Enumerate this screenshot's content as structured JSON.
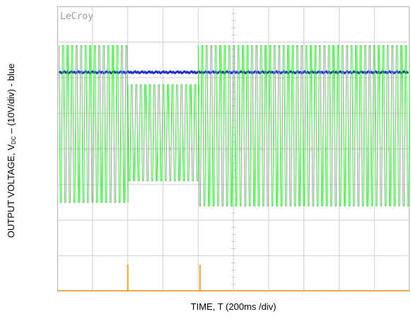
{
  "chart_data": {
    "type": "line",
    "brand": "LeCroy",
    "xlabel": "TIME, T (200ms /div)",
    "ylabel": {
      "pre": "OUTPUT VOLTAGE,  V",
      "sub": "DC",
      "post": " – (10V/div) -  blue"
    },
    "grid": {
      "divisions_x": 10,
      "divisions_y": 8,
      "visible": true
    },
    "xlim": [
      0,
      10
    ],
    "ylim": [
      0,
      8
    ],
    "series": [
      {
        "name": "",
        "color": "#1d2fd6",
        "kind": "dc-line",
        "level": 6.15
      },
      {
        "name": "",
        "color": "#35e035",
        "kind": "switching-burst",
        "segments": [
          {
            "x_start": 0.05,
            "x_end": 2.0,
            "y_top": 6.9,
            "y_bottom": 2.5
          },
          {
            "x_start": 2.0,
            "x_end": 4.0,
            "y_top": 5.8,
            "y_bottom": 3.1
          },
          {
            "x_start": 4.0,
            "x_end": 10.0,
            "y_top": 6.9,
            "y_bottom": 2.4
          }
        ]
      },
      {
        "name": "",
        "color": "#f0a020",
        "kind": "pulses",
        "x": [
          2.0,
          4.05
        ],
        "height": 0.75
      }
    ]
  }
}
